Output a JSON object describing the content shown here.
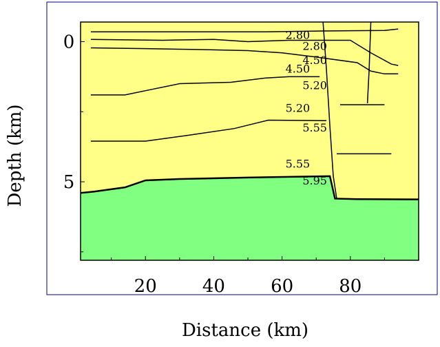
{
  "chart_data": {
    "type": "area",
    "title": "",
    "xlabel": "Distance (km)",
    "ylabel": "Depth (km)",
    "xlim": [
      1,
      100
    ],
    "ylim": [
      -0.7,
      7.8
    ],
    "x_ticks_major": [
      20,
      40,
      60,
      80
    ],
    "y_ticks_major": [
      0,
      5
    ],
    "colors": {
      "upper_layer": "#ffff88",
      "lower_layer": "#80ff80",
      "frame": "#000080",
      "lines": "#000000"
    },
    "upper_layer": {
      "name": "",
      "top_boundary": [
        [
          1,
          -0.7
        ],
        [
          100,
          -0.7
        ]
      ]
    },
    "lower_layer_top": {
      "points": [
        [
          1,
          5.4
        ],
        [
          5,
          5.35
        ],
        [
          14,
          5.2
        ],
        [
          20,
          4.95
        ],
        [
          30,
          4.9
        ],
        [
          50,
          4.85
        ],
        [
          74,
          4.8
        ],
        [
          75.5,
          5.6
        ],
        [
          82,
          5.62
        ],
        [
          100,
          5.63
        ]
      ]
    },
    "contours": [
      {
        "points": [
          [
            4,
            -0.35
          ],
          [
            20,
            -0.35
          ],
          [
            40,
            -0.35
          ],
          [
            55,
            -0.35
          ],
          [
            72,
            -0.38
          ],
          [
            90,
            -0.4
          ],
          [
            94,
            -0.45
          ]
        ]
      },
      {
        "points": [
          [
            4,
            -0.08
          ],
          [
            25,
            -0.05
          ],
          [
            40,
            -0.08
          ],
          [
            50,
            0.0
          ],
          [
            62,
            -0.05
          ],
          [
            80,
            -0.05
          ],
          [
            86,
            0.4
          ],
          [
            92,
            0.8
          ],
          [
            94,
            0.85
          ]
        ]
      },
      {
        "points": [
          [
            4,
            0.22
          ],
          [
            20,
            0.25
          ],
          [
            35,
            0.28
          ],
          [
            50,
            0.32
          ],
          [
            60,
            0.4
          ],
          [
            70,
            0.55
          ],
          [
            82,
            0.75
          ],
          [
            86,
            1.05
          ],
          [
            90,
            1.15
          ],
          [
            94,
            1.15
          ]
        ]
      },
      {
        "points": [
          [
            4,
            1.9
          ],
          [
            14,
            1.9
          ],
          [
            22,
            1.7
          ],
          [
            30,
            1.5
          ],
          [
            45,
            1.45
          ],
          [
            55,
            1.3
          ],
          [
            62,
            1.25
          ],
          [
            71,
            1.25
          ]
        ]
      },
      {
        "points": [
          [
            77,
            2.25
          ],
          [
            90,
            2.25
          ]
        ]
      },
      {
        "points": [
          [
            4,
            3.55
          ],
          [
            20,
            3.55
          ],
          [
            32,
            3.35
          ],
          [
            46,
            3.1
          ],
          [
            56,
            2.8
          ],
          [
            73,
            2.82
          ]
        ]
      },
      {
        "points": [
          [
            76,
            4.0
          ],
          [
            92,
            4.0
          ]
        ]
      }
    ],
    "faults": [
      {
        "points": [
          [
            72,
            -0.7
          ],
          [
            73,
            1.0
          ],
          [
            74,
            3.0
          ],
          [
            75,
            4.8
          ],
          [
            76,
            5.6
          ]
        ]
      },
      {
        "points": [
          [
            86,
            -0.7
          ],
          [
            85.5,
            1.0
          ],
          [
            85,
            2.2
          ]
        ]
      }
    ],
    "labels": [
      {
        "text": "2.80",
        "x": 61,
        "y": -0.1
      },
      {
        "text": "2.80",
        "x": 66,
        "y": 0.3
      },
      {
        "text": "4.50",
        "x": 66,
        "y": 0.8
      },
      {
        "text": "4.50",
        "x": 61,
        "y": 1.1
      },
      {
        "text": "5.20",
        "x": 66,
        "y": 1.7
      },
      {
        "text": "5.20",
        "x": 61,
        "y": 2.5
      },
      {
        "text": "5.55",
        "x": 66,
        "y": 3.2
      },
      {
        "text": "5.55",
        "x": 61,
        "y": 4.5
      },
      {
        "text": "5.95",
        "x": 66,
        "y": 5.1
      }
    ]
  }
}
